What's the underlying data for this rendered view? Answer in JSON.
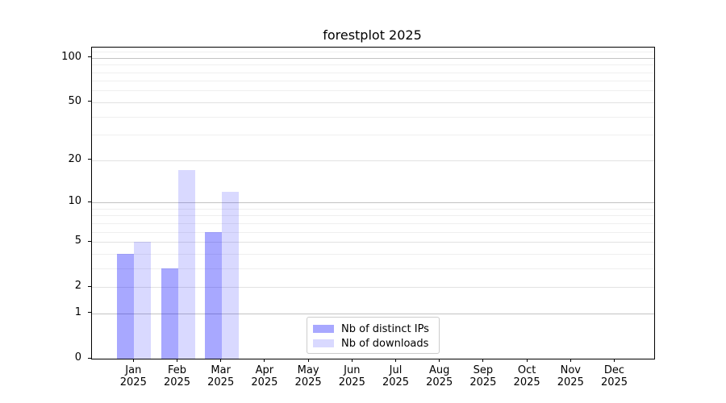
{
  "chart_data": {
    "type": "bar",
    "title": "forestplot 2025",
    "x": {
      "months": [
        "Jan",
        "Feb",
        "Mar",
        "Apr",
        "May",
        "Jun",
        "Jul",
        "Aug",
        "Sep",
        "Oct",
        "Nov",
        "Dec"
      ],
      "year": "2025"
    },
    "series": [
      {
        "name": "Nb of distinct IPs",
        "color": "rgba(0,0,255,0.34)",
        "values": [
          4,
          3,
          6,
          0,
          0,
          0,
          0,
          0,
          0,
          0,
          0,
          0
        ]
      },
      {
        "name": "Nb of downloads",
        "color": "rgba(0,0,255,0.15)",
        "values": [
          5,
          17,
          12,
          0,
          0,
          0,
          0,
          0,
          0,
          0,
          0,
          0
        ]
      }
    ],
    "y_axis": {
      "scale": "log1p",
      "major_ticks": [
        0,
        1,
        2,
        5,
        10,
        20,
        50,
        100
      ],
      "decade_ticks": [
        1,
        10,
        100
      ],
      "minor_ticks": [
        3,
        4,
        6,
        7,
        8,
        9,
        30,
        40,
        60,
        70,
        80,
        90,
        110
      ],
      "ylim": [
        0,
        118
      ]
    },
    "legend": {
      "position": "lower center"
    },
    "grid": true,
    "colors": {
      "decade_gridline": "#c3c3c3",
      "major_gridline": "#e2e2e2",
      "minor_gridline": "#efefef"
    }
  }
}
